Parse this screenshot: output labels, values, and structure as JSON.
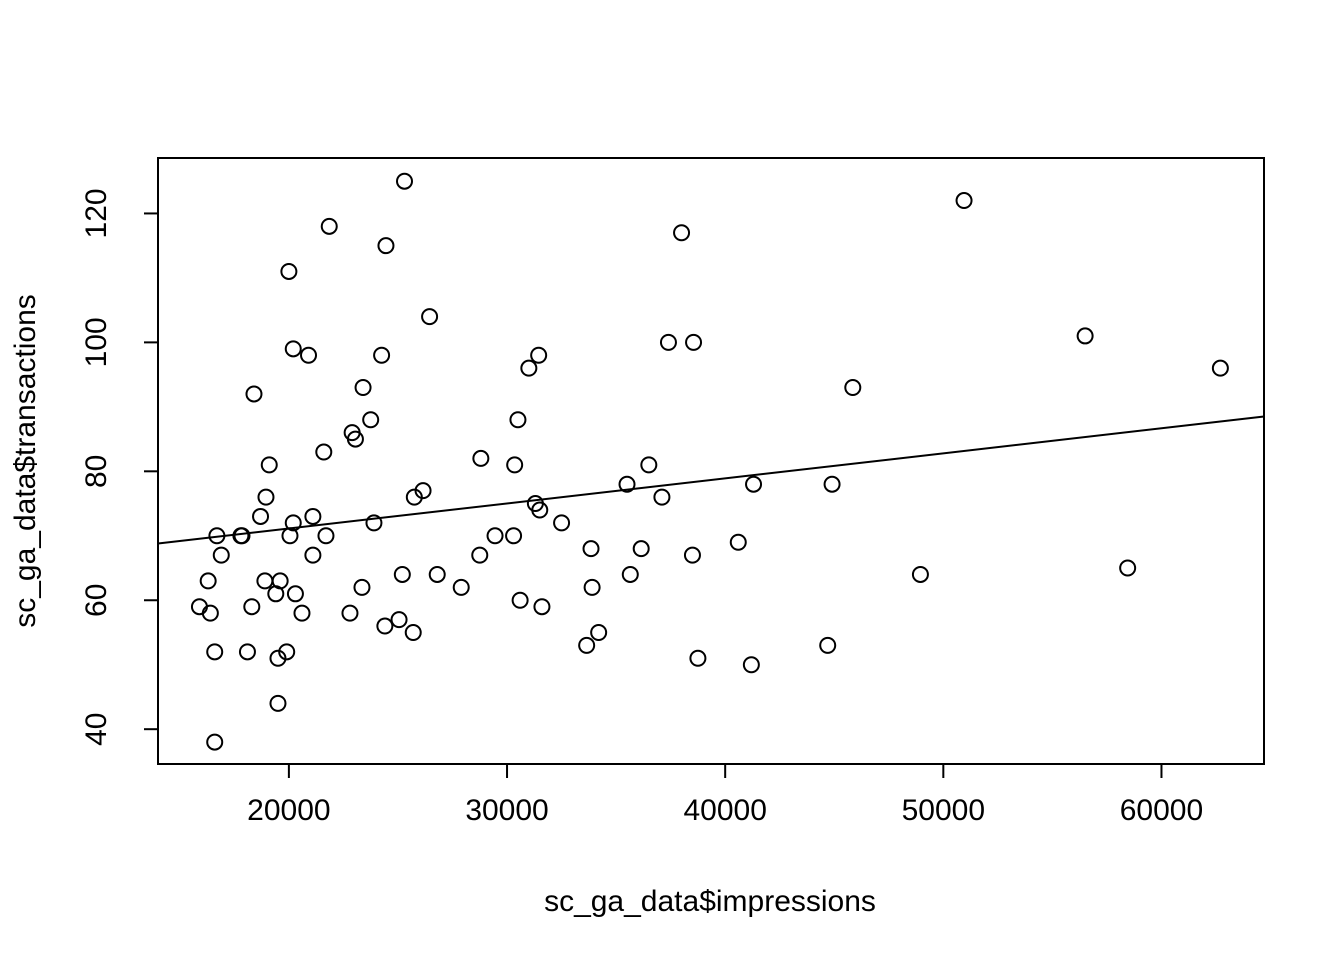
{
  "chart_data": {
    "type": "scatter",
    "title": "",
    "xlabel": "sc_ga_data$impressions",
    "ylabel": "sc_ga_data$transactions",
    "xlim": [
      14000,
      64700
    ],
    "ylim": [
      34.6,
      128.6
    ],
    "xticks": [
      20000,
      30000,
      40000,
      50000,
      60000
    ],
    "xtick_labels": [
      "20000",
      "30000",
      "40000",
      "50000",
      "60000"
    ],
    "yticks": [
      40,
      60,
      80,
      100,
      120
    ],
    "ytick_labels": [
      "40",
      "60",
      "80",
      "100",
      "120"
    ],
    "grid": false,
    "legend": "none",
    "marker": "open-circle",
    "colors": {
      "points": "#000000",
      "line": "#000000",
      "frame": "#000000"
    },
    "regression_line": {
      "x": [
        14000,
        64700
      ],
      "y": [
        68.8,
        88.5
      ]
    },
    "points": [
      {
        "x": 15900,
        "y": 59
      },
      {
        "x": 16300,
        "y": 63
      },
      {
        "x": 16400,
        "y": 58
      },
      {
        "x": 16600,
        "y": 52
      },
      {
        "x": 16600,
        "y": 38
      },
      {
        "x": 16700,
        "y": 70
      },
      {
        "x": 16900,
        "y": 67
      },
      {
        "x": 17800,
        "y": 70
      },
      {
        "x": 17850,
        "y": 70
      },
      {
        "x": 18100,
        "y": 52
      },
      {
        "x": 18300,
        "y": 59
      },
      {
        "x": 18400,
        "y": 92
      },
      {
        "x": 18700,
        "y": 73
      },
      {
        "x": 18900,
        "y": 63
      },
      {
        "x": 18950,
        "y": 76
      },
      {
        "x": 19100,
        "y": 81
      },
      {
        "x": 19400,
        "y": 61
      },
      {
        "x": 19500,
        "y": 44
      },
      {
        "x": 19500,
        "y": 51
      },
      {
        "x": 19600,
        "y": 63
      },
      {
        "x": 19900,
        "y": 52
      },
      {
        "x": 20000,
        "y": 111
      },
      {
        "x": 20050,
        "y": 70
      },
      {
        "x": 20200,
        "y": 72
      },
      {
        "x": 20200,
        "y": 99
      },
      {
        "x": 20300,
        "y": 61
      },
      {
        "x": 20600,
        "y": 58
      },
      {
        "x": 20900,
        "y": 98
      },
      {
        "x": 21100,
        "y": 67
      },
      {
        "x": 21100,
        "y": 73
      },
      {
        "x": 21600,
        "y": 83
      },
      {
        "x": 21700,
        "y": 70
      },
      {
        "x": 21850,
        "y": 118
      },
      {
        "x": 22800,
        "y": 58
      },
      {
        "x": 22900,
        "y": 86
      },
      {
        "x": 23050,
        "y": 85
      },
      {
        "x": 23350,
        "y": 62
      },
      {
        "x": 23400,
        "y": 93
      },
      {
        "x": 23750,
        "y": 88
      },
      {
        "x": 23900,
        "y": 72
      },
      {
        "x": 24250,
        "y": 98
      },
      {
        "x": 24400,
        "y": 56
      },
      {
        "x": 24450,
        "y": 115
      },
      {
        "x": 25050,
        "y": 57
      },
      {
        "x": 25200,
        "y": 64
      },
      {
        "x": 25300,
        "y": 125
      },
      {
        "x": 25700,
        "y": 55
      },
      {
        "x": 25750,
        "y": 76
      },
      {
        "x": 26150,
        "y": 77
      },
      {
        "x": 26450,
        "y": 104
      },
      {
        "x": 26800,
        "y": 64
      },
      {
        "x": 27900,
        "y": 62
      },
      {
        "x": 28750,
        "y": 67
      },
      {
        "x": 28800,
        "y": 82
      },
      {
        "x": 29450,
        "y": 70
      },
      {
        "x": 30300,
        "y": 70
      },
      {
        "x": 30350,
        "y": 81
      },
      {
        "x": 30500,
        "y": 88
      },
      {
        "x": 30600,
        "y": 60
      },
      {
        "x": 31000,
        "y": 96
      },
      {
        "x": 31300,
        "y": 75
      },
      {
        "x": 31450,
        "y": 98
      },
      {
        "x": 31500,
        "y": 74
      },
      {
        "x": 31600,
        "y": 59
      },
      {
        "x": 32500,
        "y": 72
      },
      {
        "x": 33650,
        "y": 53
      },
      {
        "x": 33850,
        "y": 68
      },
      {
        "x": 33900,
        "y": 62
      },
      {
        "x": 34200,
        "y": 55
      },
      {
        "x": 35500,
        "y": 78
      },
      {
        "x": 35650,
        "y": 64
      },
      {
        "x": 36150,
        "y": 68
      },
      {
        "x": 36500,
        "y": 81
      },
      {
        "x": 37100,
        "y": 76
      },
      {
        "x": 37400,
        "y": 100
      },
      {
        "x": 38000,
        "y": 117
      },
      {
        "x": 38500,
        "y": 67
      },
      {
        "x": 38550,
        "y": 100
      },
      {
        "x": 38750,
        "y": 51
      },
      {
        "x": 40600,
        "y": 69
      },
      {
        "x": 41200,
        "y": 50
      },
      {
        "x": 41300,
        "y": 78
      },
      {
        "x": 44700,
        "y": 53
      },
      {
        "x": 44900,
        "y": 78
      },
      {
        "x": 45850,
        "y": 93
      },
      {
        "x": 48950,
        "y": 64
      },
      {
        "x": 50950,
        "y": 122
      },
      {
        "x": 56500,
        "y": 101
      },
      {
        "x": 58450,
        "y": 65
      },
      {
        "x": 62700,
        "y": 96
      }
    ]
  }
}
